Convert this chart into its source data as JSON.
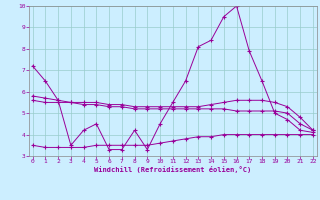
{
  "xlabel": "Windchill (Refroidissement éolien,°C)",
  "bg_color": "#cceeff",
  "grid_color": "#99cccc",
  "line_color": "#990099",
  "xmin": 0,
  "xmax": 23,
  "ymin": 3,
  "ymax": 10,
  "series": [
    {
      "x": [
        0,
        1,
        2,
        3,
        4,
        5,
        6,
        7,
        8,
        9,
        10,
        11,
        12,
        13,
        14,
        15,
        16,
        17,
        18,
        19,
        20,
        21,
        22
      ],
      "y": [
        7.2,
        6.5,
        5.6,
        3.5,
        4.2,
        4.5,
        3.3,
        3.3,
        4.2,
        3.3,
        4.5,
        5.5,
        6.5,
        8.1,
        8.4,
        9.5,
        10.0,
        7.9,
        6.5,
        5.0,
        4.7,
        4.2,
        4.1
      ]
    },
    {
      "x": [
        0,
        1,
        2,
        3,
        4,
        5,
        6,
        7,
        8,
        9,
        10,
        11,
        12,
        13,
        14,
        15,
        16,
        17,
        18,
        19,
        20,
        21,
        22
      ],
      "y": [
        5.8,
        5.7,
        5.6,
        5.5,
        5.5,
        5.5,
        5.4,
        5.4,
        5.3,
        5.3,
        5.3,
        5.3,
        5.3,
        5.3,
        5.4,
        5.5,
        5.6,
        5.6,
        5.6,
        5.5,
        5.3,
        4.8,
        4.2
      ]
    },
    {
      "x": [
        0,
        1,
        2,
        3,
        4,
        5,
        6,
        7,
        8,
        9,
        10,
        11,
        12,
        13,
        14,
        15,
        16,
        17,
        18,
        19,
        20,
        21,
        22
      ],
      "y": [
        5.6,
        5.5,
        5.5,
        5.5,
        5.4,
        5.4,
        5.3,
        5.3,
        5.2,
        5.2,
        5.2,
        5.2,
        5.2,
        5.2,
        5.2,
        5.2,
        5.1,
        5.1,
        5.1,
        5.1,
        5.0,
        4.5,
        4.2
      ]
    },
    {
      "x": [
        0,
        1,
        2,
        3,
        4,
        5,
        6,
        7,
        8,
        9,
        10,
        11,
        12,
        13,
        14,
        15,
        16,
        17,
        18,
        19,
        20,
        21,
        22
      ],
      "y": [
        3.5,
        3.4,
        3.4,
        3.4,
        3.4,
        3.5,
        3.5,
        3.5,
        3.5,
        3.5,
        3.6,
        3.7,
        3.8,
        3.9,
        3.9,
        4.0,
        4.0,
        4.0,
        4.0,
        4.0,
        4.0,
        4.0,
        4.0
      ]
    }
  ]
}
